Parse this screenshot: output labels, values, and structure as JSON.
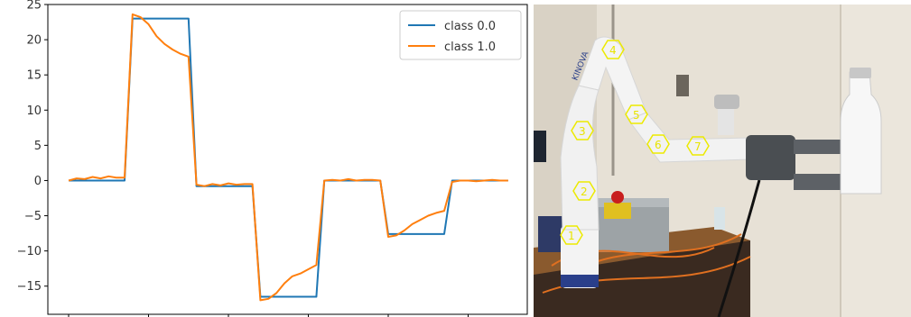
{
  "chart_data": {
    "type": "line",
    "title": "",
    "xlabel": "",
    "ylabel": "",
    "x": [
      0,
      1,
      2,
      3,
      4,
      5,
      6,
      7,
      8,
      9,
      10,
      11,
      12,
      13,
      14,
      15,
      16,
      17,
      18,
      19,
      20,
      21,
      22,
      23,
      24,
      25,
      26,
      27,
      28,
      29,
      30,
      31,
      32,
      33,
      34,
      35,
      36,
      37,
      38,
      39,
      40,
      41,
      42,
      43,
      44,
      45,
      46,
      47,
      48,
      49,
      50,
      51,
      52,
      53,
      54,
      55
    ],
    "xlim": [
      -2.6,
      57.4
    ],
    "ylim": [
      -19,
      25
    ],
    "yticks": [
      -15,
      -10,
      -5,
      0,
      5,
      10,
      15,
      20,
      25
    ],
    "ytick_labels": [
      "−15",
      "−10",
      "−5",
      "0",
      "5",
      "10",
      "15",
      "20",
      "25"
    ],
    "grid": false,
    "legend_position": "top-right",
    "series": [
      {
        "name": "class 0.0",
        "color": "#1f77b4",
        "values": [
          0,
          0,
          0,
          0,
          0,
          0,
          0,
          0,
          23,
          23,
          23,
          23,
          23,
          23,
          23,
          23,
          -0.8,
          -0.8,
          -0.8,
          -0.8,
          -0.8,
          -0.8,
          -0.8,
          -0.8,
          -16.5,
          -16.5,
          -16.5,
          -16.5,
          -16.5,
          -16.5,
          -16.5,
          -16.5,
          0,
          0,
          0,
          0,
          0,
          0,
          0,
          0,
          -7.6,
          -7.6,
          -7.6,
          -7.6,
          -7.6,
          -7.6,
          -7.6,
          -7.6,
          0,
          0,
          0,
          0,
          0,
          0,
          0,
          0
        ]
      },
      {
        "name": "class 1.0",
        "color": "#ff7f0e",
        "values": [
          0,
          0.3,
          0.2,
          0.5,
          0.3,
          0.6,
          0.4,
          0.4,
          23.6,
          23.2,
          22.2,
          20.5,
          19.4,
          18.6,
          18,
          17.6,
          -0.6,
          -0.8,
          -0.5,
          -0.7,
          -0.4,
          -0.6,
          -0.5,
          -0.5,
          -17,
          -16.8,
          -16,
          -14.6,
          -13.6,
          -13.2,
          -12.6,
          -12,
          0,
          0.1,
          0,
          0.2,
          0,
          0.1,
          0.1,
          0,
          -8,
          -7.8,
          -7.1,
          -6.2,
          -5.6,
          -5,
          -4.6,
          -4.3,
          -0.2,
          0,
          0,
          -0.1,
          0,
          0.1,
          0,
          0
        ]
      }
    ]
  },
  "photo": {
    "brand_text": "KINOVA",
    "joint_labels": [
      "4",
      "3",
      "5",
      "6",
      "7",
      "2",
      "1"
    ]
  }
}
